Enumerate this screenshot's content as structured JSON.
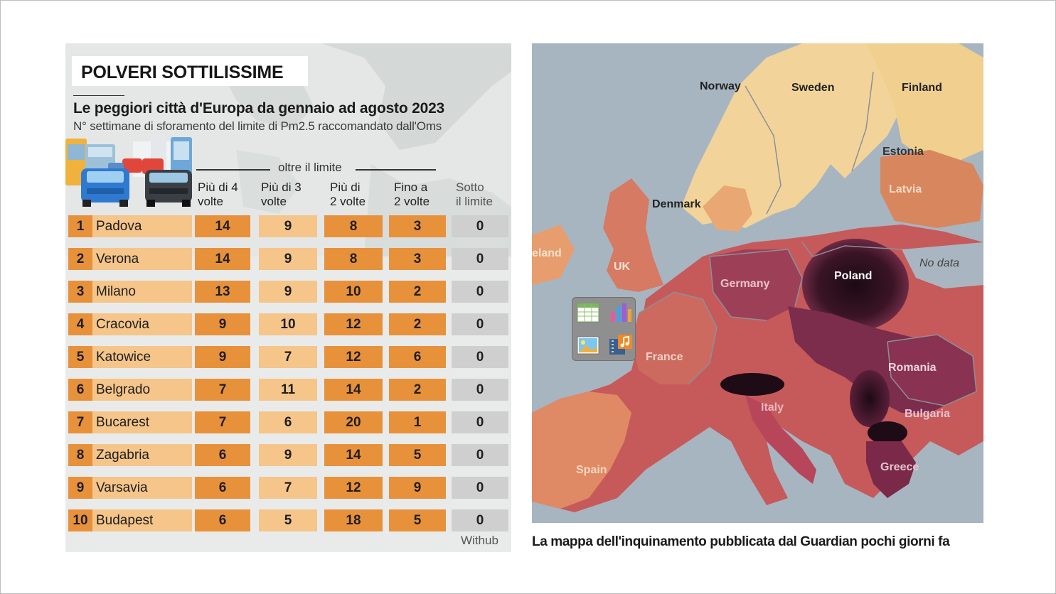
{
  "infographic": {
    "title": "POLVERI SOTTILISSIME",
    "subtitle": "Le peggiori città d'Europa da gennaio ad agosto 2023",
    "description": "N° settimane di sforamento del limite di Pm2.5 raccomandato dall'Oms",
    "over_limit_label": "oltre il limite",
    "columns": [
      {
        "line1": "Più di 4",
        "line2": "volte"
      },
      {
        "line1": "Più di 3",
        "line2": "volte"
      },
      {
        "line1": "Più di",
        "line2": "2 volte"
      },
      {
        "line1": "Fino a",
        "line2": "2 volte"
      },
      {
        "line1": "Sotto",
        "line2": "il limite"
      }
    ],
    "rows": [
      {
        "rank": "1",
        "city": "Padova",
        "v": [
          "14",
          "9",
          "8",
          "3",
          "0"
        ]
      },
      {
        "rank": "2",
        "city": "Verona",
        "v": [
          "14",
          "9",
          "8",
          "3",
          "0"
        ]
      },
      {
        "rank": "3",
        "city": "Milano",
        "v": [
          "13",
          "9",
          "10",
          "2",
          "0"
        ]
      },
      {
        "rank": "4",
        "city": "Cracovia",
        "v": [
          "9",
          "10",
          "12",
          "2",
          "0"
        ]
      },
      {
        "rank": "5",
        "city": "Katowice",
        "v": [
          "9",
          "7",
          "12",
          "6",
          "0"
        ]
      },
      {
        "rank": "6",
        "city": "Belgrado",
        "v": [
          "7",
          "11",
          "14",
          "2",
          "0"
        ]
      },
      {
        "rank": "7",
        "city": "Bucarest",
        "v": [
          "7",
          "6",
          "20",
          "1",
          "0"
        ]
      },
      {
        "rank": "8",
        "city": "Zagabria",
        "v": [
          "6",
          "9",
          "14",
          "5",
          "0"
        ]
      },
      {
        "rank": "9",
        "city": "Varsavia",
        "v": [
          "6",
          "7",
          "12",
          "9",
          "0"
        ]
      },
      {
        "rank": "10",
        "city": "Budapest",
        "v": [
          "6",
          "5",
          "18",
          "5",
          "0"
        ]
      }
    ],
    "source": "Withub",
    "colors": {
      "dark_orange": "#e8913b",
      "light_orange": "#f5c58a",
      "gray": "#cfcfcf"
    }
  },
  "map": {
    "labels": {
      "norway": "Norway",
      "sweden": "Sweden",
      "finland": "Finland",
      "estonia": "Estonia",
      "latvia": "Latvia",
      "denmark": "Denmark",
      "ireland": "eland",
      "uk": "UK",
      "germany": "Germany",
      "poland": "Poland",
      "no_data": "No data",
      "france": "France",
      "romania": "Romania",
      "italy": "Italy",
      "bulgaria": "Bulgaria",
      "spain": "Spain",
      "greece": "Greece"
    },
    "caption": "La mappa dell'inquinamento pubblicata dal Guardian pochi giorni fa"
  },
  "media_placeholder": {
    "icons": [
      "spreadsheet-icon",
      "bar-chart-icon",
      "image-icon",
      "music-video-icon"
    ]
  }
}
